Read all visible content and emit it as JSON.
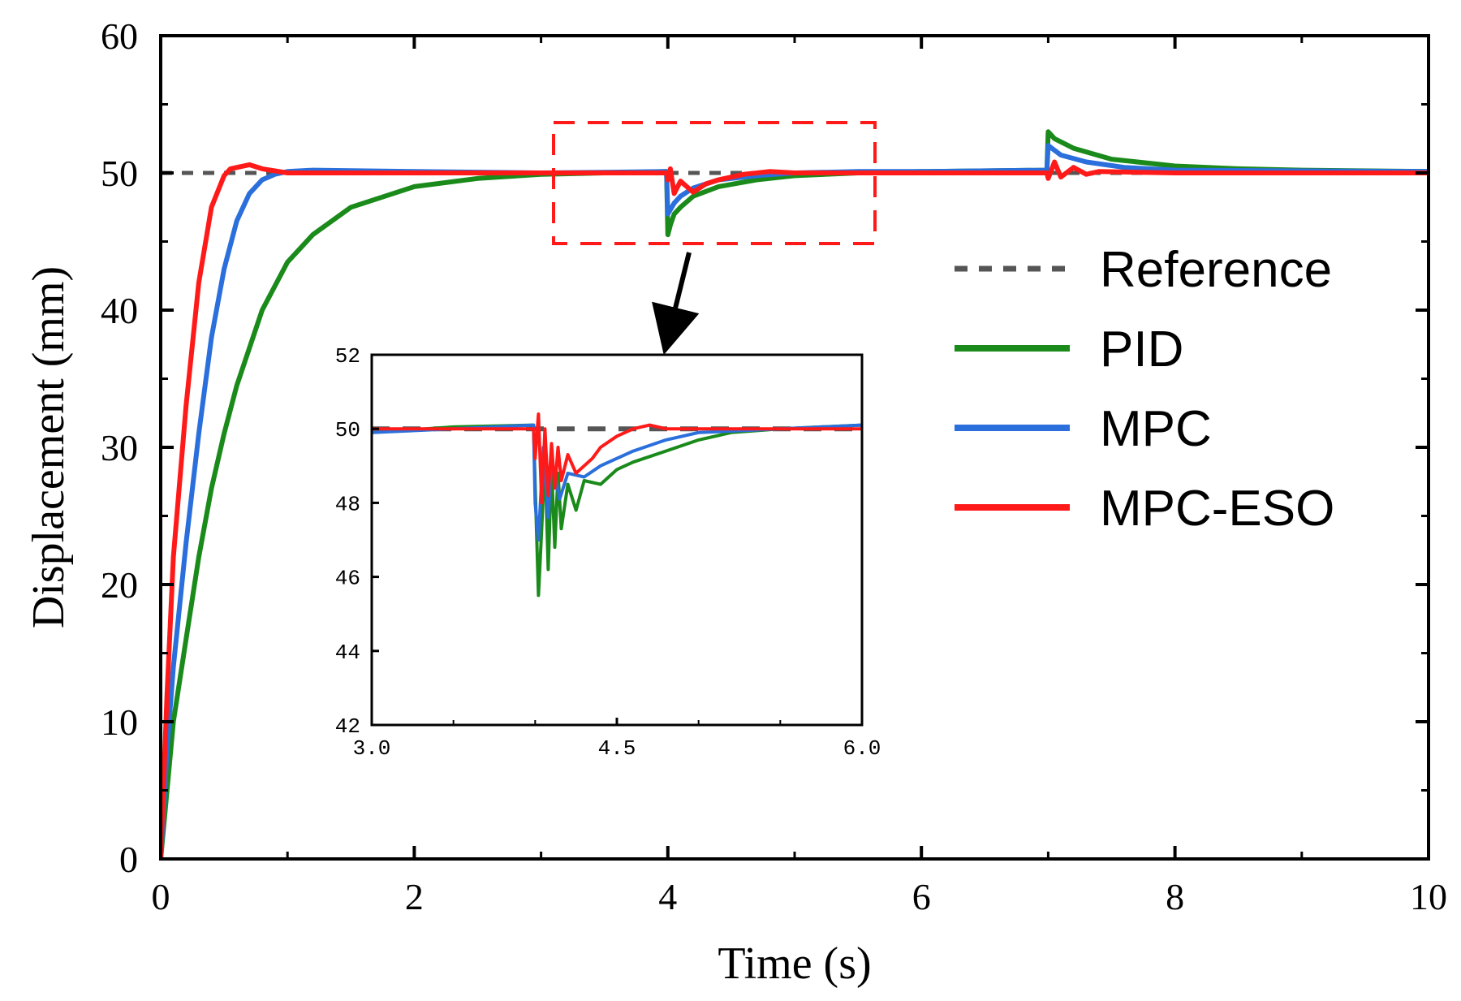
{
  "chart_data": {
    "type": "line",
    "xlabel": "Time (s)",
    "ylabel": "Displacement (mm)",
    "xlim": [
      0,
      10
    ],
    "ylim": [
      0,
      60
    ],
    "xticks": [
      0,
      2,
      4,
      6,
      8,
      10
    ],
    "yticks": [
      0,
      10,
      20,
      30,
      40,
      50,
      60
    ],
    "legend": "right",
    "series": [
      {
        "name": "Reference",
        "color": "#555555",
        "style": "dashed",
        "x": [
          0,
          10
        ],
        "y": [
          50,
          50
        ]
      },
      {
        "name": "PID",
        "color": "#1a8a1a",
        "x": [
          0,
          0.05,
          0.1,
          0.2,
          0.3,
          0.4,
          0.5,
          0.6,
          0.8,
          1.0,
          1.2,
          1.5,
          2.0,
          2.5,
          3.0,
          3.5,
          3.99,
          4.0,
          4.02,
          4.05,
          4.1,
          4.2,
          4.4,
          4.7,
          5.0,
          5.5,
          6.0,
          6.99,
          7.0,
          7.05,
          7.2,
          7.5,
          8.0,
          8.5,
          9.0,
          10.0
        ],
        "y": [
          0,
          5,
          10,
          16,
          22,
          27,
          31,
          34.5,
          40,
          43.5,
          45.5,
          47.5,
          49,
          49.6,
          49.9,
          50.0,
          50.1,
          45.5,
          46.2,
          47,
          47.5,
          48.3,
          49.0,
          49.5,
          49.8,
          50.0,
          50.1,
          50.2,
          53,
          52.5,
          51.8,
          51,
          50.5,
          50.3,
          50.2,
          50.1
        ]
      },
      {
        "name": "MPC",
        "color": "#2a6fdb",
        "x": [
          0,
          0.05,
          0.1,
          0.2,
          0.3,
          0.4,
          0.5,
          0.6,
          0.7,
          0.8,
          0.9,
          1.0,
          1.2,
          2.0,
          3.0,
          3.99,
          4.0,
          4.05,
          4.1,
          4.2,
          4.4,
          4.7,
          5.0,
          5.5,
          6.0,
          6.99,
          7.0,
          7.1,
          7.3,
          7.6,
          8.0,
          10.0
        ],
        "y": [
          0,
          8,
          14,
          23,
          31,
          38,
          43,
          46.5,
          48.5,
          49.5,
          49.9,
          50.1,
          50.2,
          50.1,
          50.0,
          50.1,
          47,
          47.8,
          48.3,
          48.9,
          49.5,
          49.8,
          50.0,
          50.1,
          50.1,
          50.2,
          52,
          51.3,
          50.8,
          50.4,
          50.2,
          50.1
        ]
      },
      {
        "name": "MPC-ESO",
        "color": "#ff1a1a",
        "x": [
          0,
          0.05,
          0.1,
          0.2,
          0.3,
          0.4,
          0.5,
          0.55,
          0.7,
          0.8,
          1.0,
          1.2,
          2.0,
          3.0,
          3.99,
          4.0,
          4.02,
          4.05,
          4.1,
          4.2,
          4.3,
          4.4,
          4.6,
          4.8,
          5.0,
          6.0,
          6.99,
          7.0,
          7.05,
          7.1,
          7.2,
          7.3,
          7.4,
          8.0,
          10.0
        ],
        "y": [
          0,
          12,
          22,
          33,
          42,
          47.5,
          49.8,
          50.3,
          50.6,
          50.3,
          50.0,
          50.0,
          50.0,
          50.0,
          50.0,
          49.5,
          50.3,
          48.5,
          49.4,
          48.6,
          49.2,
          49.5,
          49.9,
          50.1,
          50.0,
          50.0,
          50.0,
          49.6,
          50.8,
          49.7,
          50.4,
          49.9,
          50.1,
          50.0,
          50.0
        ]
      }
    ],
    "inset": {
      "xlim": [
        3.0,
        6.0
      ],
      "ylim": [
        42,
        52
      ],
      "xticks": [
        "3.0",
        "4.5",
        "6.0"
      ],
      "yticks": [
        "42",
        "44",
        "46",
        "48",
        "50",
        "52"
      ],
      "series": [
        {
          "name": "Reference",
          "x": [
            3.0,
            6.0
          ],
          "y": [
            50,
            50
          ]
        },
        {
          "name": "PID",
          "x": [
            3.0,
            3.5,
            3.99,
            4.0,
            4.02,
            4.04,
            4.06,
            4.08,
            4.1,
            4.12,
            4.14,
            4.16,
            4.2,
            4.25,
            4.3,
            4.4,
            4.5,
            4.6,
            4.8,
            5.0,
            5.2,
            5.5,
            6.0
          ],
          "y": [
            49.9,
            50.05,
            50.1,
            48.5,
            45.5,
            47.3,
            49.3,
            46.2,
            49.0,
            46.8,
            48.8,
            47.3,
            48.5,
            47.8,
            48.6,
            48.5,
            48.9,
            49.1,
            49.4,
            49.7,
            49.9,
            50.0,
            50.1
          ]
        },
        {
          "name": "MPC",
          "x": [
            3.0,
            3.99,
            4.0,
            4.02,
            4.05,
            4.08,
            4.1,
            4.15,
            4.2,
            4.3,
            4.4,
            4.6,
            4.8,
            5.0,
            5.5,
            6.0
          ],
          "y": [
            49.9,
            50.1,
            48,
            47,
            49.5,
            47.6,
            49.2,
            48.1,
            48.8,
            48.7,
            49.0,
            49.4,
            49.7,
            49.9,
            50.0,
            50.1
          ]
        },
        {
          "name": "MPC-ESO",
          "x": [
            3.0,
            3.99,
            4.0,
            4.02,
            4.04,
            4.06,
            4.08,
            4.1,
            4.12,
            4.14,
            4.16,
            4.2,
            4.25,
            4.3,
            4.35,
            4.4,
            4.5,
            4.6,
            4.7,
            4.8,
            5.0,
            6.0
          ],
          "y": [
            50.0,
            50.0,
            49.2,
            50.4,
            48.0,
            50.0,
            48.2,
            49.6,
            48.4,
            49.5,
            48.6,
            49.3,
            48.8,
            49.0,
            49.2,
            49.5,
            49.8,
            50.0,
            50.1,
            50.0,
            50.0,
            50.0
          ]
        }
      ]
    }
  }
}
